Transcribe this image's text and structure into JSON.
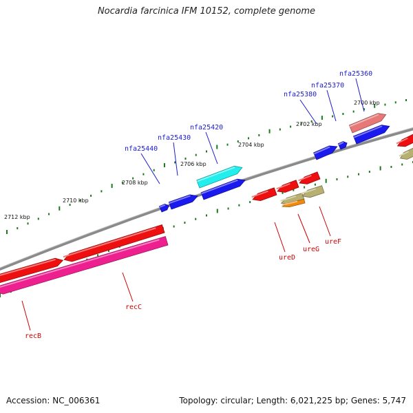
{
  "title": "Nocardia farcinica IFM 10152, complete genome",
  "footer": {
    "accession": "Accession: NC_006361",
    "stats": "Topology: circular; Length: 6,021,225 bp; Genes: 5,747"
  },
  "colors": {
    "backbone": "#8a8a8a",
    "tick": "#1a7a1a",
    "forward_label": "#1a1acc",
    "reverse_label": "#cc0000"
  },
  "scale_ticks": [
    {
      "label": "2700 kbp",
      "kbp": 2700
    },
    {
      "label": "2702 kbp",
      "kbp": 2702
    },
    {
      "label": "2704 kbp",
      "kbp": 2704
    },
    {
      "label": "2706 kbp",
      "kbp": 2706
    },
    {
      "label": "2708 kbp",
      "kbp": 2708
    },
    {
      "label": "2710 kbp",
      "kbp": 2710
    },
    {
      "label": "2712 kbp",
      "kbp": 2712
    }
  ],
  "forward_genes": [
    {
      "name": "nfa25360",
      "color": "#e87878"
    },
    {
      "name": "nfa25370",
      "color": "#1a1aee"
    },
    {
      "name": "nfa25380",
      "color": "#1a1aee"
    },
    {
      "name": "nfa25420",
      "color": "#22eeee"
    },
    {
      "name": "nfa25430",
      "color": "#1a1aee"
    },
    {
      "name": "nfa25440",
      "color": "#1a1aee"
    }
  ],
  "reverse_genes": [
    {
      "name": "ureF",
      "color": "#b8b070"
    },
    {
      "name": "ureG",
      "color": "#ee8a10"
    },
    {
      "name": "ureD",
      "color": "#ee1010"
    },
    {
      "name": "recC",
      "color": "#ee1010"
    },
    {
      "name": "recB",
      "color": "#ee2090"
    }
  ]
}
